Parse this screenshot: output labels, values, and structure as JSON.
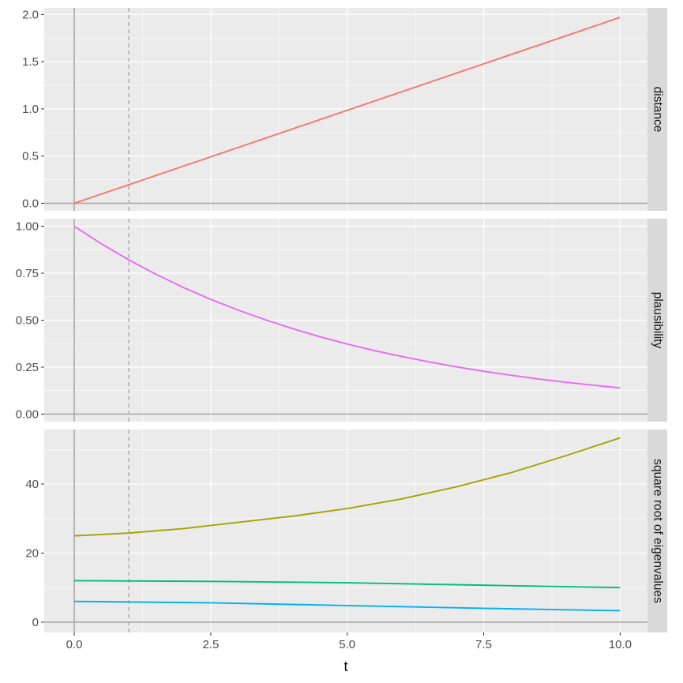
{
  "chart_data": {
    "type": "line",
    "xlabel": "t",
    "xlim": [
      -0.55,
      10.5
    ],
    "x_ticks": [
      0,
      2.5,
      5,
      7.5,
      10
    ],
    "x_tick_labels": [
      "0.0",
      "2.5",
      "5.0",
      "7.5",
      "10.0"
    ],
    "reference_lines": {
      "solid_x": 0,
      "dashed_x": 1
    },
    "grid": true,
    "facets": [
      {
        "strip_label": "distance",
        "ylim": [
          -0.08,
          2.07
        ],
        "y_ticks": [
          0,
          0.5,
          1.0,
          1.5,
          2.0
        ],
        "y_tick_labels": [
          "0.0",
          "0.5",
          "1.0",
          "1.5",
          "2.0"
        ],
        "series": [
          {
            "color": "#F8766D",
            "x": [
              0,
              10
            ],
            "y": [
              0,
              1.97
            ]
          }
        ]
      },
      {
        "strip_label": "plausibility",
        "ylim": [
          -0.04,
          1.04
        ],
        "y_ticks": [
          0,
          0.25,
          0.5,
          0.75,
          1.0
        ],
        "y_tick_labels": [
          "0.00",
          "0.25",
          "0.50",
          "0.75",
          "1.00"
        ],
        "series": [
          {
            "color": "#E76BF3",
            "x": [
              0,
              0.5,
              1,
              1.5,
              2,
              2.5,
              3,
              3.5,
              4,
              4.5,
              5,
              5.5,
              6,
              6.5,
              7,
              7.5,
              8,
              8.5,
              9,
              9.5,
              10
            ],
            "y": [
              1.0,
              0.906,
              0.821,
              0.744,
              0.674,
              0.611,
              0.554,
              0.502,
              0.455,
              0.412,
              0.373,
              0.338,
              0.307,
              0.278,
              0.252,
              0.228,
              0.207,
              0.187,
              0.17,
              0.154,
              0.14
            ]
          }
        ]
      },
      {
        "strip_label": "square root of eigenvalues",
        "ylim": [
          -3,
          55.8
        ],
        "y_ticks": [
          0,
          20,
          40
        ],
        "y_tick_labels": [
          "0",
          "20",
          "40"
        ],
        "series": [
          {
            "color": "#A3A500",
            "x": [
              0,
              1,
              2,
              3,
              4,
              5,
              6,
              7,
              8,
              9,
              10
            ],
            "y": [
              25.0,
              25.8,
              27.1,
              28.9,
              30.7,
              32.9,
              35.7,
              39.2,
              43.3,
              48.2,
              53.4
            ]
          },
          {
            "color": "#00BF7D",
            "x": [
              0,
              2.5,
              5,
              7.5,
              10
            ],
            "y": [
              12.0,
              11.8,
              11.4,
              10.7,
              10.0
            ]
          },
          {
            "color": "#00B0F6",
            "x": [
              0,
              2.5,
              5,
              7.5,
              10
            ],
            "y": [
              6.0,
              5.6,
              4.8,
              4.0,
              3.3
            ]
          }
        ]
      }
    ]
  }
}
